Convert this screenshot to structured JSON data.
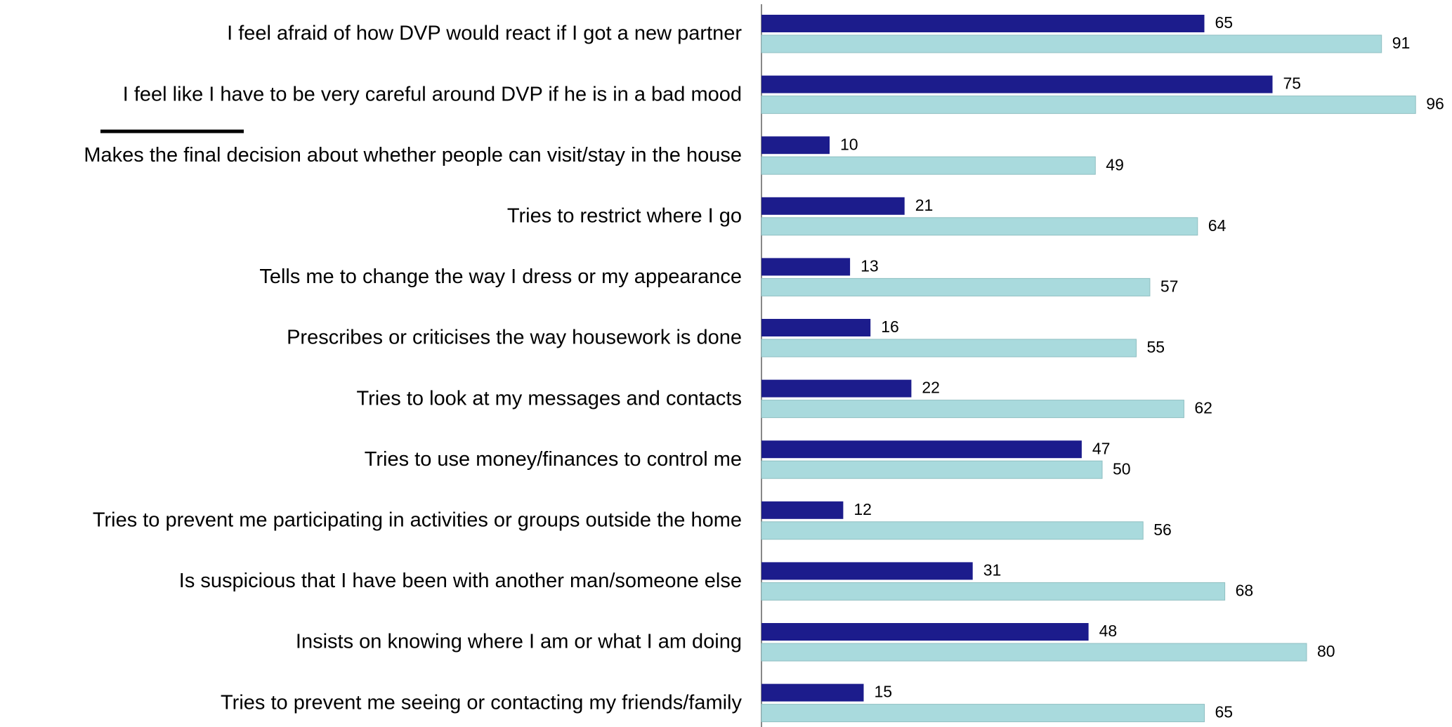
{
  "chart_data": {
    "type": "bar",
    "horizontal": true,
    "categories": [
      "I feel afraid of how DVP would react if I got a new partner",
      "I feel like I have to be very careful around DVP if he is in a bad mood",
      "Makes the final decision about whether people can visit/stay in the house",
      "Tries to restrict where I go",
      "Tells me to change the way I dress or my appearance",
      "Prescribes or criticises the way housework is done",
      "Tries to look at my messages and contacts",
      "Tries to use money/finances to control me",
      "Tries to prevent me participating in activities or groups outside the home",
      "Is suspicious that I have been with another man/someone else",
      "Insists on knowing where I am or what I am doing",
      "Tries to prevent me seeing or contacting my friends/family"
    ],
    "series": [
      {
        "color": "#1c1c8c",
        "values": [
          65,
          75,
          10,
          21,
          13,
          16,
          22,
          47,
          12,
          31,
          48,
          15
        ]
      },
      {
        "color": "#a9dadd",
        "values": [
          91,
          96,
          49,
          64,
          57,
          55,
          62,
          50,
          56,
          68,
          80,
          65
        ]
      }
    ],
    "xlim": [
      0,
      100
    ]
  }
}
